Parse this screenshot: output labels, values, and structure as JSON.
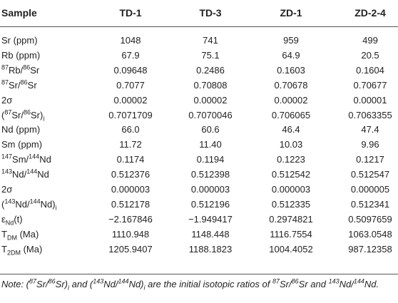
{
  "table": {
    "header": [
      "Sample",
      "TD-1",
      "TD-3",
      "ZD-1",
      "ZD-2-4"
    ],
    "rows": [
      {
        "label": [
          "Sr (ppm)"
        ],
        "values": [
          "1048",
          "741",
          "959",
          "499"
        ]
      },
      {
        "label": [
          "Rb (ppm)"
        ],
        "values": [
          "67.9",
          "75.1",
          "64.9",
          "20.5"
        ]
      },
      {
        "label": [
          {
            "sup": "87"
          },
          "Rb/",
          {
            "sup": "86"
          },
          "Sr"
        ],
        "values": [
          "0.09648",
          "0.2486",
          "0.1603",
          "0.1604"
        ]
      },
      {
        "label": [
          {
            "sup": "87"
          },
          "Sr/",
          {
            "sup": "86"
          },
          "Sr"
        ],
        "values": [
          "0.7077",
          "0.70808",
          "0.70678",
          "0.70677"
        ]
      },
      {
        "label": [
          "2σ"
        ],
        "values": [
          "0.00002",
          "0.00002",
          "0.00002",
          "0.00001"
        ]
      },
      {
        "label": [
          "(",
          {
            "sup": "87"
          },
          "Sr/",
          {
            "sup": "86"
          },
          "Sr)",
          {
            "sub": "i"
          }
        ],
        "values": [
          "0.7071709",
          "0.7070046",
          "0.706065",
          "0.7063355"
        ]
      },
      {
        "label": [
          "Nd (ppm)"
        ],
        "values": [
          "66.0",
          "60.6",
          "46.4",
          "47.4"
        ]
      },
      {
        "label": [
          "Sm (ppm)"
        ],
        "values": [
          "11.72",
          "11.40",
          "10.03",
          "9.96"
        ]
      },
      {
        "label": [
          {
            "sup": "147"
          },
          "Sm/",
          {
            "sup": "144"
          },
          "Nd"
        ],
        "values": [
          "0.1174",
          "0.1194",
          "0.1223",
          "0.1217"
        ]
      },
      {
        "label": [
          {
            "sup": "143"
          },
          "Nd/",
          {
            "sup": "144"
          },
          "Nd"
        ],
        "values": [
          "0.512376",
          "0.512398",
          "0.512542",
          "0.512547"
        ]
      },
      {
        "label": [
          "2σ"
        ],
        "values": [
          "0.000003",
          "0.000003",
          "0.000003",
          "0.000005"
        ]
      },
      {
        "label": [
          "(",
          {
            "sup": "143"
          },
          "Nd/",
          {
            "sup": "144"
          },
          "Nd)",
          {
            "sub": "i"
          }
        ],
        "values": [
          "0.512178",
          "0.512196",
          "0.512335",
          "0.512341"
        ]
      },
      {
        "label": [
          "ε",
          {
            "sub": "Nd"
          },
          "(t)"
        ],
        "values": [
          "−2.167846",
          "−1.949417",
          "0.2974821",
          "0.5097659"
        ]
      },
      {
        "label": [
          "T",
          {
            "sub": "DM"
          },
          " (Ma)"
        ],
        "values": [
          "1110.948",
          "1148.448",
          "1116.7554",
          "1063.0548"
        ]
      },
      {
        "label": [
          "T",
          {
            "sub": "2DM"
          },
          " (Ma)"
        ],
        "values": [
          "1205.9407",
          "1188.1823",
          "1004.4052",
          "987.12358"
        ]
      }
    ],
    "note": [
      "Note: (",
      {
        "sup": "87"
      },
      "Sr/",
      {
        "sup": "86"
      },
      "Sr)",
      {
        "sub": "i"
      },
      " and (",
      {
        "sup": "143"
      },
      "Nd/",
      {
        "sup": "144"
      },
      "Nd)",
      {
        "sub": "i"
      },
      " are the initial isotopic ratios of ",
      {
        "sup": "87"
      },
      "Sr/",
      {
        "sup": "86"
      },
      "Sr and ",
      {
        "sup": "143"
      },
      "Nd/",
      {
        "sup": "144"
      },
      "Nd."
    ]
  }
}
